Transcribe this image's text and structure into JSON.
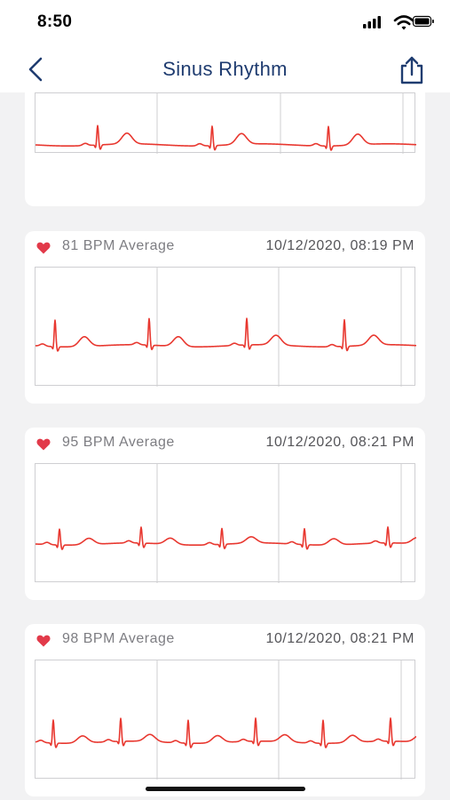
{
  "status_bar": {
    "time": "8:50",
    "icons": [
      "signal-icon",
      "wifi-icon",
      "battery-icon"
    ]
  },
  "nav": {
    "title": "Sinus Rhythm",
    "back_icon": "chevron-left-icon",
    "share_icon": "share-icon"
  },
  "colors": {
    "accent": "#1f3c70",
    "ecg_trace": "#e8372f",
    "heart": "#e23a4a",
    "background": "#f2f2f3"
  },
  "recordings": [
    {
      "bpm_label": "",
      "timestamp": ""
    },
    {
      "bpm_label": "81 BPM Average",
      "timestamp": "10/12/2020, 08:19 PM"
    },
    {
      "bpm_label": "95 BPM Average",
      "timestamp": "10/12/2020, 08:21 PM"
    },
    {
      "bpm_label": "98 BPM Average",
      "timestamp": "10/12/2020, 08:21 PM"
    }
  ]
}
